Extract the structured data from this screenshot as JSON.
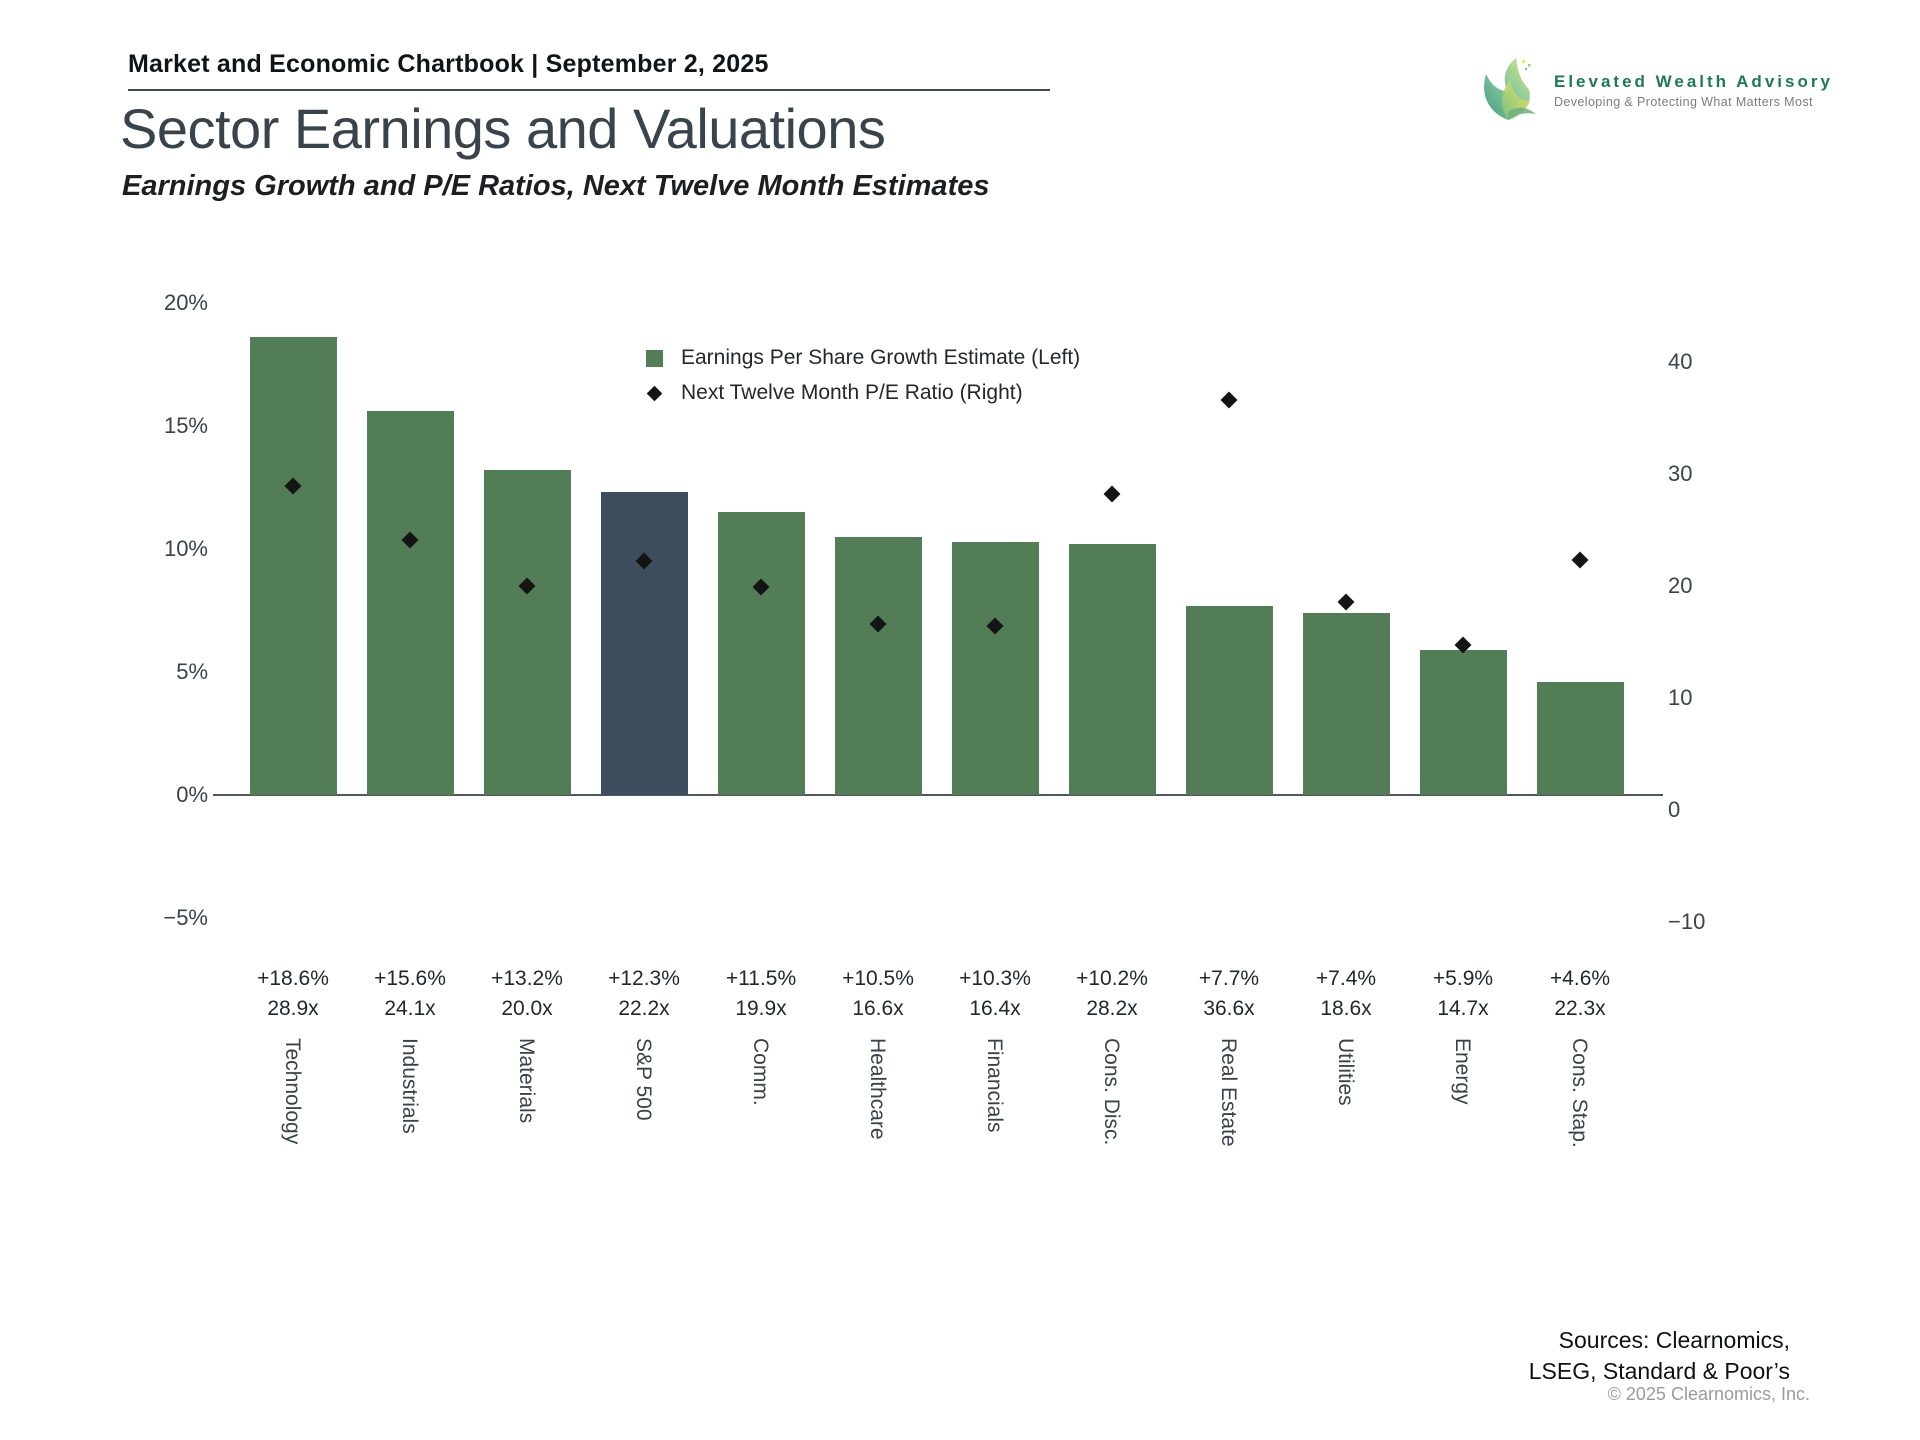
{
  "header": {
    "chartbook_label": "Market and Economic Chartbook | September 2, 2025"
  },
  "logo": {
    "brand_name": "Elevated Wealth Advisory",
    "tagline": "Developing & Protecting What Matters Most",
    "brand_color": "#1f7a52"
  },
  "title": "Sector Earnings and Valuations",
  "subtitle": "Earnings Growth and P/E Ratios, Next Twelve Month Estimates",
  "legend": [
    {
      "marker": "square-icon",
      "label": "Earnings Per Share Growth Estimate (Left)"
    },
    {
      "marker": "diamond-icon",
      "label": "Next Twelve Month P/E Ratio (Right)"
    }
  ],
  "chart_data": {
    "type": "bar",
    "categories": [
      "Technology",
      "Industrials",
      "Materials",
      "S&P 500",
      "Comm.",
      "Healthcare",
      "Financials",
      "Cons. Disc.",
      "Real Estate",
      "Utilities",
      "Energy",
      "Cons. Stap."
    ],
    "series": [
      {
        "name": "Earnings Per Share Growth Estimate",
        "axis": "left",
        "unit": "%",
        "values": [
          18.6,
          15.6,
          13.2,
          12.3,
          11.5,
          10.5,
          10.3,
          10.2,
          7.7,
          7.4,
          5.9,
          4.6
        ]
      },
      {
        "name": "Next Twelve Month P/E Ratio",
        "axis": "right",
        "unit": "x",
        "values": [
          28.9,
          24.1,
          20.0,
          22.2,
          19.9,
          16.6,
          16.4,
          28.2,
          36.6,
          18.6,
          14.7,
          22.3
        ]
      }
    ],
    "growth_labels": [
      "+18.6%",
      "+15.6%",
      "+13.2%",
      "+12.3%",
      "+11.5%",
      "+10.5%",
      "+10.3%",
      "+10.2%",
      "+7.7%",
      "+7.4%",
      "+5.9%",
      "+4.6%"
    ],
    "pe_labels": [
      "28.9x",
      "24.1x",
      "20.0x",
      "22.2x",
      "19.9x",
      "16.6x",
      "16.4x",
      "28.2x",
      "36.6x",
      "18.6x",
      "14.7x",
      "22.3x"
    ],
    "left_axis": {
      "tick_labels": [
        "20%",
        "15%",
        "10%",
        "5%",
        "0%",
        "−5%"
      ],
      "tick_values": [
        20,
        15,
        10,
        5,
        0,
        -5
      ],
      "range": [
        -5,
        20
      ]
    },
    "right_axis": {
      "tick_labels": [
        "40",
        "30",
        "20",
        "10",
        "0",
        "−10"
      ],
      "tick_values": [
        40,
        30,
        20,
        10,
        0,
        -10
      ],
      "range": [
        -10,
        40
      ]
    },
    "highlight_index": 3,
    "colors": {
      "bar": "#527d56",
      "highlight_bar": "#3d4d5c",
      "diamond": "#141414"
    },
    "grid": false,
    "legend_position": "upper-center"
  },
  "footer": {
    "sources_line1": "Sources: Clearnomics,",
    "sources_line2": "LSEG, Standard & Poor’s",
    "copyright": "© 2025 Clearnomics, Inc."
  }
}
